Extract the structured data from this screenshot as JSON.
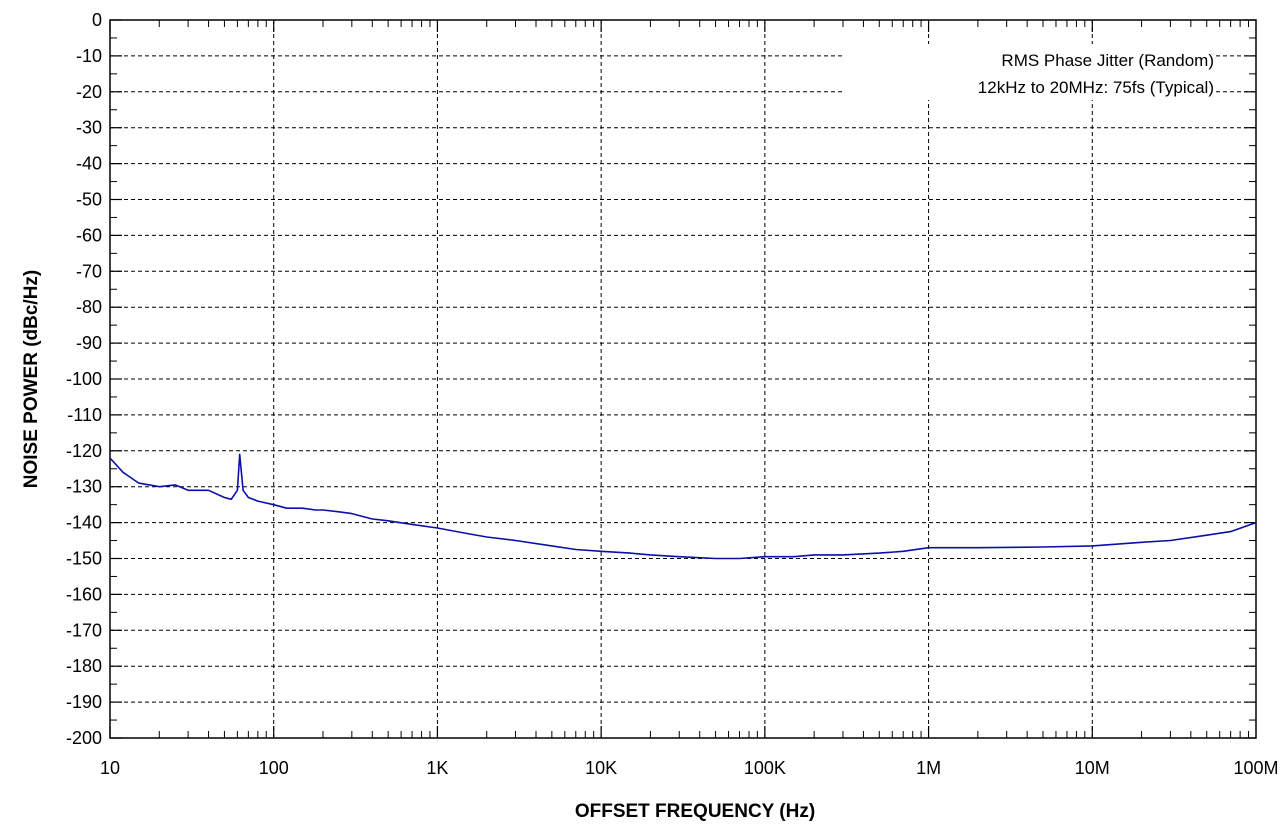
{
  "chart_data": {
    "type": "line",
    "title": "",
    "xlabel": "OFFSET FREQUENCY (Hz)",
    "ylabel": "NOISE POWER (dBc/Hz)",
    "x_scale": "log",
    "xlim": [
      10,
      100000000
    ],
    "ylim": [
      -200,
      0
    ],
    "grid": true,
    "x_ticks": [
      10,
      100,
      1000,
      10000,
      100000,
      1000000,
      10000000,
      100000000
    ],
    "x_tick_labels": [
      "10",
      "100",
      "1K",
      "10K",
      "100K",
      "1M",
      "10M",
      "100M"
    ],
    "y_ticks": [
      0,
      -10,
      -20,
      -30,
      -40,
      -50,
      -60,
      -70,
      -80,
      -90,
      -100,
      -110,
      -120,
      -130,
      -140,
      -150,
      -160,
      -170,
      -180,
      -190,
      -200
    ],
    "y_tick_labels": [
      "0",
      "-10",
      "-20",
      "-30",
      "-40",
      "-50",
      "-60",
      "-70",
      "-80",
      "-90",
      "-100",
      "-110",
      "-120",
      "-130",
      "-140",
      "-150",
      "-160",
      "-170",
      "-180",
      "-190",
      "-200"
    ],
    "annotations": [
      "RMS Phase Jitter (Random)",
      "12kHz to 20MHz: 75fs (Typical)"
    ],
    "series": [
      {
        "color": "#0a10a8",
        "x": [
          10,
          12,
          15,
          20,
          25,
          30,
          40,
          50,
          55,
          60,
          62,
          65,
          70,
          80,
          100,
          120,
          150,
          180,
          200,
          250,
          300,
          400,
          500,
          700,
          1000,
          1500,
          2000,
          3000,
          5000,
          7000,
          10000,
          15000,
          20000,
          30000,
          50000,
          70000,
          100000,
          150000,
          200000,
          300000,
          500000,
          700000,
          1000000,
          2000000,
          5000000,
          10000000,
          20000000,
          30000000,
          50000000,
          70000000,
          100000000
        ],
        "y": [
          -122,
          -126,
          -129,
          -130,
          -129.5,
          -131,
          -131,
          -133,
          -133.5,
          -131,
          -121,
          -131,
          -133,
          -134,
          -135,
          -136,
          -136,
          -136.5,
          -136.5,
          -137,
          -137.5,
          -139,
          -139.5,
          -140.5,
          -141.5,
          -143,
          -144,
          -145,
          -146.5,
          -147.5,
          -148,
          -148.5,
          -149,
          -149.5,
          -150,
          -150,
          -149.5,
          -149.5,
          -149,
          -149,
          -148.5,
          -148,
          -147,
          -147,
          -146.8,
          -146.5,
          -145.5,
          -145,
          -143.5,
          -142.5,
          -140
        ]
      }
    ]
  }
}
